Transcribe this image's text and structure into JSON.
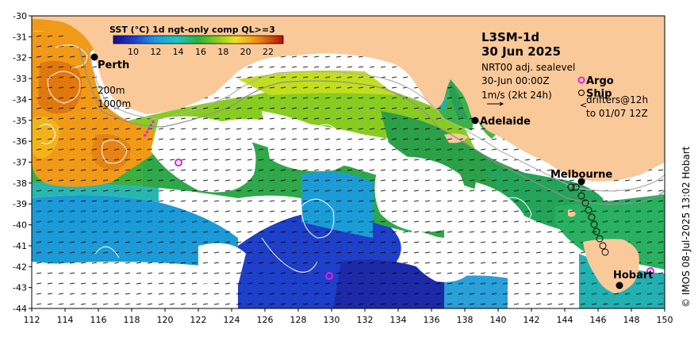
{
  "product": {
    "title": "L3SM-1d",
    "date": "30 Jun 2025",
    "sealevel": "NRT00 adj. sealevel",
    "time": "30-Jun 00:00Z",
    "current_scale": "1m/s (2kt 24h)"
  },
  "colorbar": {
    "title": "SST (°C) 1d ngt-only comp QL>=3",
    "ticks": [
      "10",
      "12",
      "14",
      "16",
      "18",
      "20",
      "22"
    ]
  },
  "legend": {
    "argo": "Argo",
    "ship": "Ship",
    "drifters_line1": "drifters@12h",
    "drifters_line2": "to 01/07 12Z",
    "argo_color": "#e020e0"
  },
  "isobaths": {
    "shallow": "200m",
    "deep": "1000m"
  },
  "cities": {
    "perth": "Perth",
    "adelaide": "Adelaide",
    "melbourne": "Melbourne",
    "hobart": "Hobart"
  },
  "credit": "© IMOS 08-Jul-2025 13:02 Hobart",
  "axes": {
    "lon_ticks": [
      "112",
      "114",
      "116",
      "118",
      "120",
      "122",
      "124",
      "126",
      "128",
      "130",
      "132",
      "134",
      "136",
      "138",
      "140",
      "142",
      "144",
      "146",
      "148",
      "150"
    ],
    "lat_ticks": [
      "-30",
      "-31",
      "-32",
      "-33",
      "-34",
      "-35",
      "-36",
      "-37",
      "-38",
      "-39",
      "-40",
      "-41",
      "-42",
      "-43",
      "-44"
    ],
    "lon_range": [
      112,
      150
    ],
    "lat_range": [
      -44,
      -30
    ]
  },
  "colors": {
    "land": "#f9c99a",
    "ocean_nodata": "#ffffff",
    "frame": "#000000"
  }
}
